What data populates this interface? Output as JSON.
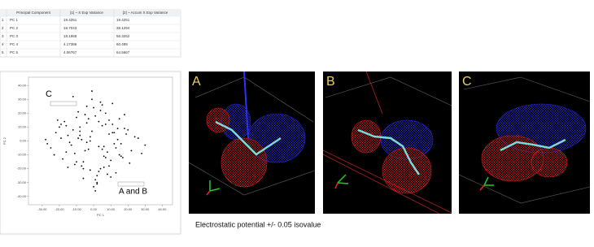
{
  "table": {
    "header": [
      "Principal Component",
      "[1] ~ X Exp Variance",
      "[2] ~ Accum X Exp Variance"
    ],
    "rows": [
      [
        "1",
        "PC 1",
        "19.4251",
        "19.4251"
      ],
      [
        "2",
        "PC 2",
        "18.7043",
        "38.1294"
      ],
      [
        "3",
        "PC 3",
        "18.1958",
        "56.3252"
      ],
      [
        "4",
        "PC 4",
        "4.17386",
        "60.499"
      ],
      [
        "5",
        "PC 5",
        "4.06767",
        "64.5667"
      ]
    ]
  },
  "chart_data": {
    "type": "scatter",
    "xlabel": "PC 1",
    "ylabel": "PC 2",
    "color": "#000000",
    "x": [
      -2,
      5,
      -8,
      12,
      3,
      -15,
      7,
      -4,
      20,
      -11,
      1,
      9,
      -6,
      15,
      -19,
      4,
      -1,
      11,
      -9,
      6,
      -13,
      18,
      2,
      -3,
      8,
      -22,
      14,
      -7,
      0,
      10,
      -16,
      5,
      -5,
      24,
      -10,
      3,
      13,
      -2,
      -18,
      7,
      -12,
      16,
      1,
      -8,
      21,
      -4,
      9,
      -25,
      6,
      -1,
      12,
      -14,
      4,
      28,
      -6,
      17,
      -20,
      2,
      -9,
      11,
      -3,
      8,
      -17,
      19,
      -11,
      5,
      -27,
      14,
      0,
      -7,
      22,
      -15,
      3,
      10,
      -5,
      -23,
      15,
      -2,
      7,
      -12,
      26,
      -19,
      1,
      -8,
      13,
      -4,
      30,
      -28,
      6,
      -10,
      18,
      -1,
      9,
      -16,
      4,
      -6,
      11,
      -21,
      2,
      16
    ],
    "y": [
      3,
      -6,
      10,
      -2,
      14,
      4,
      -12,
      -1,
      8,
      -9,
      18,
      5,
      -15,
      -10,
      2,
      -20,
      7,
      12,
      21,
      -4,
      -3,
      9,
      -25,
      16,
      -8,
      6,
      1,
      -18,
      24,
      -14,
      11,
      26,
      -7,
      3,
      17,
      -22,
      -5,
      0,
      -13,
      20,
      8,
      -11,
      -28,
      4,
      -16,
      13,
      15,
      -5,
      -19,
      30,
      6,
      -1,
      22,
      -9,
      -20,
      -12,
      10,
      -30,
      2,
      27,
      -6,
      -24,
      14,
      5,
      -17,
      11,
      -2,
      9,
      -33,
      1,
      -7,
      -19,
      -4,
      -26,
      19,
      -10,
      16,
      -21,
      12,
      32,
      2,
      12,
      -36,
      7,
      -23,
      25,
      -3,
      1,
      -11,
      -15,
      19,
      36,
      -18,
      -8,
      28,
      -27,
      6,
      15,
      -31,
      -2
    ],
    "xlim": [
      -38,
      46
    ],
    "ylim": [
      -46,
      46
    ],
    "xticks": [
      {
        "value": -30,
        "label": "-30.00"
      },
      {
        "value": -20,
        "label": "-20.00"
      },
      {
        "value": -10,
        "label": "-10.00"
      },
      {
        "value": 0,
        "label": "0.00"
      },
      {
        "value": 10,
        "label": "10.00"
      },
      {
        "value": 20,
        "label": "20.00"
      },
      {
        "value": 30,
        "label": "30.00"
      },
      {
        "value": 40,
        "label": "40.00"
      }
    ],
    "yticks": [
      {
        "value": 40,
        "label": "40.00"
      },
      {
        "value": 30,
        "label": "30.00"
      },
      {
        "value": 20,
        "label": "20.00"
      },
      {
        "value": 10,
        "label": "10.00"
      },
      {
        "value": 0,
        "label": "0.00"
      },
      {
        "value": -10,
        "label": "-10.00"
      },
      {
        "value": -20,
        "label": "-20.00"
      },
      {
        "value": -30,
        "label": "-30.00"
      },
      {
        "value": -40,
        "label": "-40.00"
      }
    ],
    "annotations": [
      "C",
      "A and B"
    ]
  },
  "panels": [
    "A",
    "B",
    "C"
  ],
  "caption": "Electrostatic potential +/- 0.05 isovalue"
}
